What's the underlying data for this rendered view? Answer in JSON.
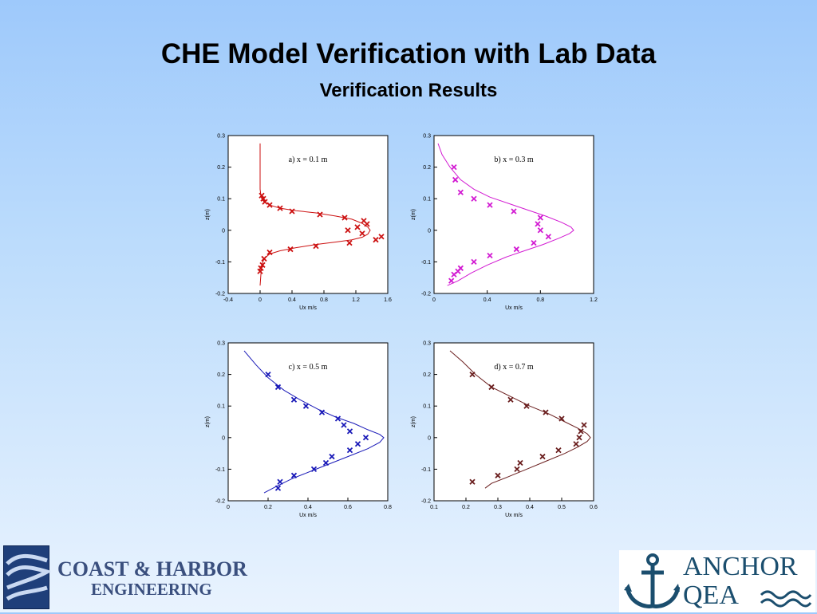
{
  "slide": {
    "title": "CHE Model Verification with Lab Data",
    "subtitle": "Verification Results"
  },
  "logos": {
    "left_line1": "COAST & HARBOR",
    "left_line2": "ENGINEERING",
    "right_line1": "ANCHOR",
    "right_line2": "QEA",
    "left_icon": "waves-icon",
    "right_icon": "anchor-icon"
  },
  "chart_data": [
    {
      "type": "scatter",
      "annotation": "a) x = 0.1 m",
      "xlabel": "Ux m/s",
      "ylabel": "z(m)",
      "xlim": [
        -0.4,
        1.6
      ],
      "ylim": [
        -0.2,
        0.3
      ],
      "xticks": [
        "-0.4",
        "0",
        "0.4",
        "0.8",
        "1.2",
        "1.6"
      ],
      "yticks": [
        "-0.2",
        "-0.1",
        "0",
        "0.1",
        "0.2",
        "0.3"
      ],
      "color": "#cc1111",
      "line": {
        "x": [
          0.0,
          0.0,
          0.0,
          0.01,
          0.02,
          0.05,
          0.12,
          0.25,
          0.45,
          0.7,
          0.95,
          1.15,
          1.28,
          1.35,
          1.38,
          1.35,
          1.28,
          1.15,
          0.95,
          0.7,
          0.45,
          0.25,
          0.12,
          0.05,
          0.02,
          0.01,
          0.0
        ],
        "y": [
          0.275,
          0.2,
          0.13,
          0.11,
          0.1,
          0.09,
          0.08,
          0.07,
          0.062,
          0.055,
          0.045,
          0.035,
          0.022,
          0.01,
          0.0,
          -0.012,
          -0.022,
          -0.03,
          -0.037,
          -0.045,
          -0.055,
          -0.065,
          -0.075,
          -0.09,
          -0.11,
          -0.14,
          -0.175
        ]
      },
      "points": {
        "x": [
          0.02,
          0.04,
          0.06,
          0.12,
          0.25,
          0.4,
          0.75,
          1.06,
          1.1,
          1.22,
          1.3,
          1.34,
          1.28,
          1.45,
          1.52,
          1.12,
          0.7,
          0.38,
          0.12,
          0.05,
          0.03,
          0.01,
          0.0
        ],
        "y": [
          0.11,
          0.1,
          0.09,
          0.08,
          0.07,
          0.06,
          0.05,
          0.04,
          0.0,
          0.01,
          0.03,
          0.02,
          -0.01,
          -0.03,
          -0.02,
          -0.04,
          -0.05,
          -0.06,
          -0.07,
          -0.09,
          -0.11,
          -0.12,
          -0.13
        ]
      }
    },
    {
      "type": "scatter",
      "annotation": "b) x = 0.3 m",
      "xlabel": "Ux m/s",
      "ylabel": "z(m)",
      "xlim": [
        0,
        1.2
      ],
      "ylim": [
        -0.2,
        0.3
      ],
      "xticks": [
        "0",
        "0.4",
        "0.8",
        "1.2"
      ],
      "yticks": [
        "-0.2",
        "-0.1",
        "0",
        "0.1",
        "0.2",
        "0.3"
      ],
      "color": "#d21ad2",
      "line": {
        "x": [
          0.03,
          0.06,
          0.12,
          0.2,
          0.3,
          0.42,
          0.56,
          0.7,
          0.84,
          0.96,
          1.03,
          1.05,
          1.02,
          0.94,
          0.82,
          0.68,
          0.54,
          0.4,
          0.28,
          0.18,
          0.1
        ],
        "y": [
          0.275,
          0.24,
          0.2,
          0.16,
          0.13,
          0.105,
          0.085,
          0.065,
          0.045,
          0.025,
          0.01,
          0.0,
          -0.01,
          -0.025,
          -0.045,
          -0.065,
          -0.085,
          -0.11,
          -0.135,
          -0.16,
          -0.175
        ]
      },
      "points": {
        "x": [
          0.15,
          0.16,
          0.2,
          0.3,
          0.42,
          0.6,
          0.8,
          0.78,
          0.8,
          0.86,
          0.75,
          0.62,
          0.42,
          0.3,
          0.2,
          0.18,
          0.15,
          0.13
        ],
        "y": [
          0.2,
          0.16,
          0.12,
          0.1,
          0.08,
          0.06,
          0.04,
          0.02,
          0.0,
          -0.02,
          -0.04,
          -0.06,
          -0.08,
          -0.1,
          -0.12,
          -0.13,
          -0.14,
          -0.16
        ]
      }
    },
    {
      "type": "scatter",
      "annotation": "c) x = 0.5 m",
      "xlabel": "Ux m/s",
      "ylabel": "z(m)",
      "xlim": [
        0,
        0.8
      ],
      "ylim": [
        -0.2,
        0.3
      ],
      "xticks": [
        "0",
        "0.2",
        "0.4",
        "0.6",
        "0.8"
      ],
      "yticks": [
        "-0.2",
        "-0.1",
        "0",
        "0.1",
        "0.2",
        "0.3"
      ],
      "color": "#1a1ab8",
      "line": {
        "x": [
          0.08,
          0.14,
          0.2,
          0.28,
          0.36,
          0.45,
          0.54,
          0.63,
          0.7,
          0.76,
          0.78,
          0.76,
          0.7,
          0.62,
          0.52,
          0.42,
          0.32,
          0.24,
          0.18
        ],
        "y": [
          0.275,
          0.23,
          0.19,
          0.15,
          0.12,
          0.09,
          0.065,
          0.045,
          0.025,
          0.01,
          0.0,
          -0.015,
          -0.035,
          -0.055,
          -0.08,
          -0.105,
          -0.13,
          -0.155,
          -0.175
        ]
      },
      "points": {
        "x": [
          0.2,
          0.25,
          0.33,
          0.39,
          0.47,
          0.55,
          0.58,
          0.61,
          0.69,
          0.65,
          0.61,
          0.52,
          0.49,
          0.43,
          0.33,
          0.26,
          0.25
        ],
        "y": [
          0.2,
          0.16,
          0.12,
          0.1,
          0.08,
          0.06,
          0.04,
          0.02,
          0.0,
          -0.02,
          -0.04,
          -0.06,
          -0.08,
          -0.1,
          -0.12,
          -0.14,
          -0.16
        ]
      }
    },
    {
      "type": "scatter",
      "annotation": "d) x = 0.7 m",
      "xlabel": "Ux m/s",
      "ylabel": "z(m)",
      "xlim": [
        0.1,
        0.6
      ],
      "ylim": [
        -0.2,
        0.3
      ],
      "xticks": [
        "0.1",
        "0.2",
        "0.3",
        "0.4",
        "0.5",
        "0.6"
      ],
      "yticks": [
        "-0.2",
        "-0.1",
        "0",
        "0.1",
        "0.2",
        "0.3"
      ],
      "color": "#6a1e1e",
      "line": {
        "x": [
          0.15,
          0.19,
          0.23,
          0.28,
          0.34,
          0.4,
          0.46,
          0.51,
          0.55,
          0.58,
          0.59,
          0.58,
          0.55,
          0.51,
          0.45,
          0.39,
          0.33,
          0.28,
          0.26
        ],
        "y": [
          0.275,
          0.24,
          0.2,
          0.16,
          0.13,
          0.1,
          0.075,
          0.05,
          0.03,
          0.012,
          0.0,
          -0.012,
          -0.03,
          -0.05,
          -0.075,
          -0.1,
          -0.125,
          -0.145,
          -0.16
        ]
      },
      "points": {
        "x": [
          0.22,
          0.28,
          0.34,
          0.39,
          0.45,
          0.5,
          0.57,
          0.56,
          0.555,
          0.545,
          0.49,
          0.44,
          0.37,
          0.36,
          0.3,
          0.22
        ],
        "y": [
          0.2,
          0.16,
          0.12,
          0.1,
          0.08,
          0.06,
          0.04,
          0.02,
          0.0,
          -0.02,
          -0.04,
          -0.06,
          -0.08,
          -0.1,
          -0.12,
          -0.14
        ]
      }
    }
  ]
}
